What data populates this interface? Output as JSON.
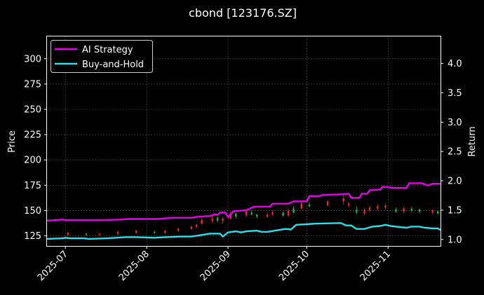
{
  "chart_data": {
    "type": "line",
    "title": "cbond [123176.SZ]",
    "ylabel": "Price",
    "y2label": "Return",
    "ylim": [
      115,
      322
    ],
    "y2lim": [
      0.89,
      4.46
    ],
    "xlim": [
      "2025-06-24",
      "2025-11-21"
    ],
    "x_ticks": [
      "2025-07",
      "2025-08",
      "2025-09",
      "2025-10",
      "2025-11"
    ],
    "y_ticks": [
      125,
      150,
      175,
      200,
      225,
      250,
      275,
      300
    ],
    "y2_ticks": [
      "1.0",
      "1.5",
      "2.0",
      "2.5",
      "3.0",
      "3.5",
      "4.0"
    ],
    "grid": true,
    "legend_position": "top-left",
    "colors": {
      "ai_strategy": "#e600e6",
      "buy_and_hold": "#2de0e8",
      "candle_up": "#e8283a",
      "candle_down": "#27b04b",
      "grid": "#555555"
    },
    "series": [
      {
        "name": "AI Strategy",
        "axis": "right",
        "points": [
          [
            "2025-06-24",
            1.32
          ],
          [
            "2025-06-27",
            1.33
          ],
          [
            "2025-06-30",
            1.34
          ],
          [
            "2025-07-01",
            1.33
          ],
          [
            "2025-07-08",
            1.33
          ],
          [
            "2025-07-15",
            1.33
          ],
          [
            "2025-07-22",
            1.34
          ],
          [
            "2025-07-25",
            1.35
          ],
          [
            "2025-07-31",
            1.35
          ],
          [
            "2025-08-05",
            1.35
          ],
          [
            "2025-08-11",
            1.37
          ],
          [
            "2025-08-18",
            1.37
          ],
          [
            "2025-08-21",
            1.39
          ],
          [
            "2025-08-25",
            1.4
          ],
          [
            "2025-08-27",
            1.43
          ],
          [
            "2025-08-28",
            1.42
          ],
          [
            "2025-08-29",
            1.46
          ],
          [
            "2025-08-31",
            1.46
          ],
          [
            "2025-09-01",
            1.38
          ],
          [
            "2025-09-03",
            1.48
          ],
          [
            "2025-09-08",
            1.5
          ],
          [
            "2025-09-11",
            1.56
          ],
          [
            "2025-09-17",
            1.56
          ],
          [
            "2025-09-18",
            1.61
          ],
          [
            "2025-09-24",
            1.61
          ],
          [
            "2025-09-26",
            1.65
          ],
          [
            "2025-10-01",
            1.65
          ],
          [
            "2025-10-02",
            1.74
          ],
          [
            "2025-10-06",
            1.74
          ],
          [
            "2025-10-07",
            1.76
          ],
          [
            "2025-10-14",
            1.77
          ],
          [
            "2025-10-17",
            1.78
          ],
          [
            "2025-10-18",
            1.71
          ],
          [
            "2025-10-21",
            1.71
          ],
          [
            "2025-10-22",
            1.78
          ],
          [
            "2025-10-24",
            1.78
          ],
          [
            "2025-10-25",
            1.84
          ],
          [
            "2025-10-29",
            1.85
          ],
          [
            "2025-10-30",
            1.9
          ],
          [
            "2025-11-03",
            1.88
          ],
          [
            "2025-11-08",
            1.88
          ],
          [
            "2025-11-09",
            1.96
          ],
          [
            "2025-11-14",
            1.96
          ],
          [
            "2025-11-16",
            1.92
          ],
          [
            "2025-11-18",
            1.95
          ],
          [
            "2025-11-21",
            1.95
          ]
        ]
      },
      {
        "name": "Buy-and-Hold",
        "axis": "right",
        "points": [
          [
            "2025-06-24",
            1.01
          ],
          [
            "2025-06-30",
            1.02
          ],
          [
            "2025-07-01",
            1.03
          ],
          [
            "2025-07-03",
            1.02
          ],
          [
            "2025-07-08",
            1.02
          ],
          [
            "2025-07-10",
            1.01
          ],
          [
            "2025-07-17",
            1.02
          ],
          [
            "2025-07-24",
            1.04
          ],
          [
            "2025-07-28",
            1.04
          ],
          [
            "2025-08-04",
            1.03
          ],
          [
            "2025-08-08",
            1.04
          ],
          [
            "2025-08-14",
            1.05
          ],
          [
            "2025-08-18",
            1.05
          ],
          [
            "2025-08-21",
            1.07
          ],
          [
            "2025-08-25",
            1.1
          ],
          [
            "2025-08-29",
            1.1
          ],
          [
            "2025-08-30",
            1.05
          ],
          [
            "2025-09-01",
            1.12
          ],
          [
            "2025-09-04",
            1.14
          ],
          [
            "2025-09-06",
            1.12
          ],
          [
            "2025-09-08",
            1.14
          ],
          [
            "2025-09-12",
            1.15
          ],
          [
            "2025-09-14",
            1.13
          ],
          [
            "2025-09-16",
            1.13
          ],
          [
            "2025-09-20",
            1.16
          ],
          [
            "2025-09-23",
            1.18
          ],
          [
            "2025-09-25",
            1.17
          ],
          [
            "2025-09-27",
            1.25
          ],
          [
            "2025-10-01",
            1.26
          ],
          [
            "2025-10-04",
            1.27
          ],
          [
            "2025-10-14",
            1.28
          ],
          [
            "2025-10-16",
            1.24
          ],
          [
            "2025-10-18",
            1.24
          ],
          [
            "2025-10-20",
            1.18
          ],
          [
            "2025-10-23",
            1.18
          ],
          [
            "2025-10-26",
            1.22
          ],
          [
            "2025-10-29",
            1.23
          ],
          [
            "2025-10-31",
            1.25
          ],
          [
            "2025-11-02",
            1.23
          ],
          [
            "2025-11-04",
            1.22
          ],
          [
            "2025-11-08",
            1.2
          ],
          [
            "2025-11-10",
            1.22
          ],
          [
            "2025-11-13",
            1.22
          ],
          [
            "2025-11-15",
            1.2
          ],
          [
            "2025-11-18",
            1.19
          ],
          [
            "2025-11-20",
            1.19
          ],
          [
            "2025-11-21",
            1.16
          ]
        ]
      }
    ],
    "candles": [
      [
        "2025-07-02",
        126,
        128,
        125,
        129
      ],
      [
        "2025-07-09",
        127,
        126,
        125,
        128
      ],
      [
        "2025-07-14",
        126,
        127,
        125,
        128
      ],
      [
        "2025-07-21",
        127,
        129,
        126,
        130
      ],
      [
        "2025-07-28",
        128,
        130,
        127,
        131
      ],
      [
        "2025-08-04",
        129,
        128,
        127,
        130
      ],
      [
        "2025-08-08",
        128,
        130,
        127,
        131
      ],
      [
        "2025-08-13",
        130,
        132,
        129,
        133
      ],
      [
        "2025-08-18",
        132,
        134,
        131,
        135
      ],
      [
        "2025-08-20",
        134,
        136,
        133,
        137
      ],
      [
        "2025-08-22",
        137,
        141,
        136,
        144
      ],
      [
        "2025-08-26",
        140,
        142,
        138,
        145
      ],
      [
        "2025-08-28",
        143,
        140,
        138,
        145
      ],
      [
        "2025-08-30",
        140,
        142,
        137,
        144
      ],
      [
        "2025-09-02",
        142,
        147,
        141,
        149
      ],
      [
        "2025-09-04",
        147,
        144,
        142,
        148
      ],
      [
        "2025-09-08",
        145,
        149,
        144,
        151
      ],
      [
        "2025-09-10",
        148,
        146,
        145,
        150
      ],
      [
        "2025-09-12",
        146,
        144,
        142,
        147
      ],
      [
        "2025-09-16",
        144,
        146,
        143,
        148
      ],
      [
        "2025-09-18",
        146,
        148,
        145,
        150
      ],
      [
        "2025-09-22",
        148,
        145,
        144,
        149
      ],
      [
        "2025-09-24",
        145,
        150,
        144,
        152
      ],
      [
        "2025-09-26",
        152,
        148,
        147,
        154
      ],
      [
        "2025-09-29",
        152,
        157,
        151,
        160
      ],
      [
        "2025-10-02",
        156,
        154,
        153,
        158
      ],
      [
        "2025-10-09",
        155,
        159,
        154,
        160
      ],
      [
        "2025-10-15",
        159,
        162,
        156,
        165
      ],
      [
        "2025-10-17",
        155,
        157,
        153,
        159
      ],
      [
        "2025-10-20",
        151,
        148,
        146,
        154
      ],
      [
        "2025-10-23",
        147,
        151,
        145,
        152
      ],
      [
        "2025-10-25",
        150,
        153,
        148,
        155
      ],
      [
        "2025-10-28",
        152,
        154,
        150,
        156
      ],
      [
        "2025-10-31",
        153,
        155,
        151,
        157
      ],
      [
        "2025-11-04",
        151,
        149,
        148,
        153
      ],
      [
        "2025-11-07",
        149,
        152,
        147,
        154
      ],
      [
        "2025-11-10",
        152,
        150,
        148,
        154
      ],
      [
        "2025-11-13",
        151,
        149,
        147,
        152
      ],
      [
        "2025-11-18",
        148,
        150,
        146,
        151
      ],
      [
        "2025-11-20",
        149,
        147,
        146,
        150
      ]
    ]
  }
}
